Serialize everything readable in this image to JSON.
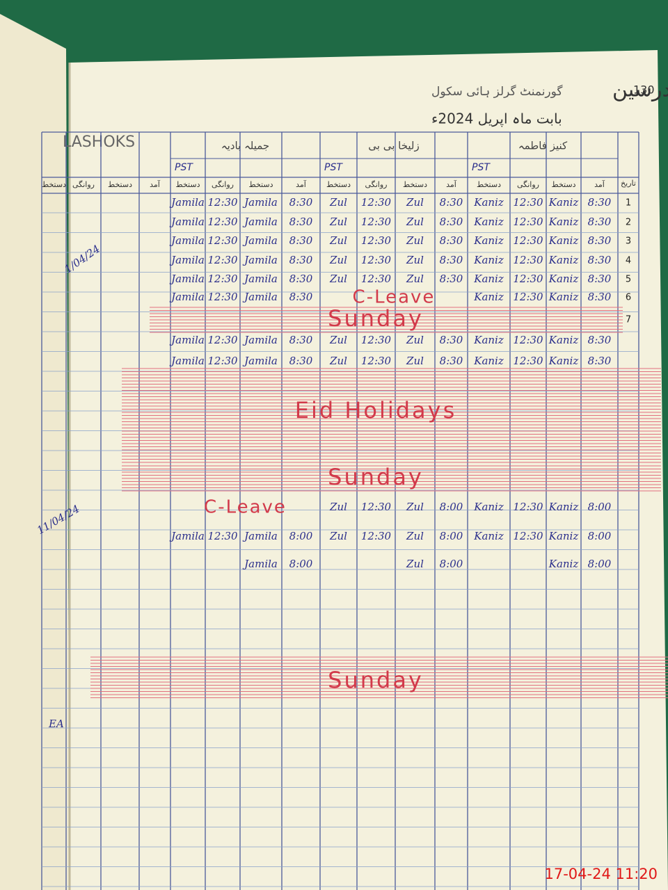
{
  "header": {
    "page_number": "130",
    "title": "رجسٹر حاضری مدرسین",
    "school": "گورنمنٹ گرلز ہائی سکول",
    "month_line": "بابت ماہ اپریل 2024ء",
    "corner_label": "LASHOKS"
  },
  "date_header": "تاریخ",
  "column_headers": [
    "آمد",
    "دستخط",
    "روانگی",
    "دستخط"
  ],
  "teachers": [
    {
      "name": "کنیز فاطمہ",
      "designation": "PST"
    },
    {
      "name": "زلیخا بی بی",
      "designation": "PST"
    },
    {
      "name": "جمیلہ بادیہ",
      "designation": "PST"
    }
  ],
  "rows": [
    {
      "date": "1",
      "cells": [
        "8:30",
        "Kaniz",
        "12:30",
        "Kaniz",
        "8:30",
        "Zul",
        "12:30",
        "Zul",
        "8:30",
        "Jamila",
        "12:30",
        "Jamila"
      ]
    },
    {
      "date": "2",
      "cells": [
        "8:30",
        "Kaniz",
        "12:30",
        "Kaniz",
        "8:30",
        "Zul",
        "12:30",
        "Zul",
        "8:30",
        "Jamila",
        "12:30",
        "Jamila"
      ]
    },
    {
      "date": "3",
      "cells": [
        "8:30",
        "Kaniz",
        "12:30",
        "Kaniz",
        "8:30",
        "Zul",
        "12:30",
        "Zul",
        "8:30",
        "Jamila",
        "12:30",
        "Jamila"
      ]
    },
    {
      "date": "4",
      "cells": [
        "8:30",
        "Kaniz",
        "12:30",
        "Kaniz",
        "8:30",
        "Zul",
        "12:30",
        "Zul",
        "8:30",
        "Jamila",
        "12:30",
        "Jamila"
      ]
    },
    {
      "date": "5",
      "cells": [
        "8:30",
        "Kaniz",
        "12:30",
        "Kaniz",
        "8:30",
        "Zul",
        "12:30",
        "Zul",
        "8:30",
        "Jamila",
        "12:30",
        "Jamila"
      ]
    },
    {
      "date": "6",
      "cells": [
        "8:30",
        "Kaniz",
        "12:30",
        "Kaniz",
        null,
        null,
        null,
        null,
        "8:30",
        "Jamila",
        "12:30",
        "Jamila"
      ],
      "note": "C-Leave"
    },
    {
      "date": "7",
      "note": "Sunday"
    },
    {
      "cells": [
        "8:30",
        "Kaniz",
        "12:30",
        "Kaniz",
        "8:30",
        "Zul",
        "12:30",
        "Zul",
        "8:30",
        "Jamila",
        "12:30",
        "Jamila"
      ]
    },
    {
      "cells": [
        "8:30",
        "Kaniz",
        "12:30",
        "Kaniz",
        "8:30",
        "Zul",
        "12:30",
        "Zul",
        "8:30",
        "Jamila",
        "12:30",
        "Jamila"
      ]
    },
    {
      "note": "Eid Holidays"
    },
    {
      "note": "Sunday"
    },
    {
      "cells": [
        "8:00",
        "Kaniz",
        "12:30",
        "Kaniz",
        "8:00",
        "Zul",
        "12:30",
        "Zul",
        null,
        null,
        null,
        null
      ],
      "note": "C-Leave"
    },
    {
      "cells": [
        "8:00",
        "Kaniz",
        "12:30",
        "Kaniz",
        "8:00",
        "Zul",
        "12:30",
        "Zul",
        "8:00",
        "Jamila",
        "12:30",
        "Jamila"
      ]
    },
    {
      "cells": [
        "8:00",
        "Kaniz",
        null,
        null,
        "8:00",
        "Zul",
        null,
        null,
        "8:00",
        "Jamila",
        null,
        null
      ]
    },
    {
      "note": "Sunday"
    }
  ],
  "margin_notes": [
    "1/04/24",
    "11/04/24",
    "EA"
  ],
  "timestamp": "17-04-24 11:20"
}
